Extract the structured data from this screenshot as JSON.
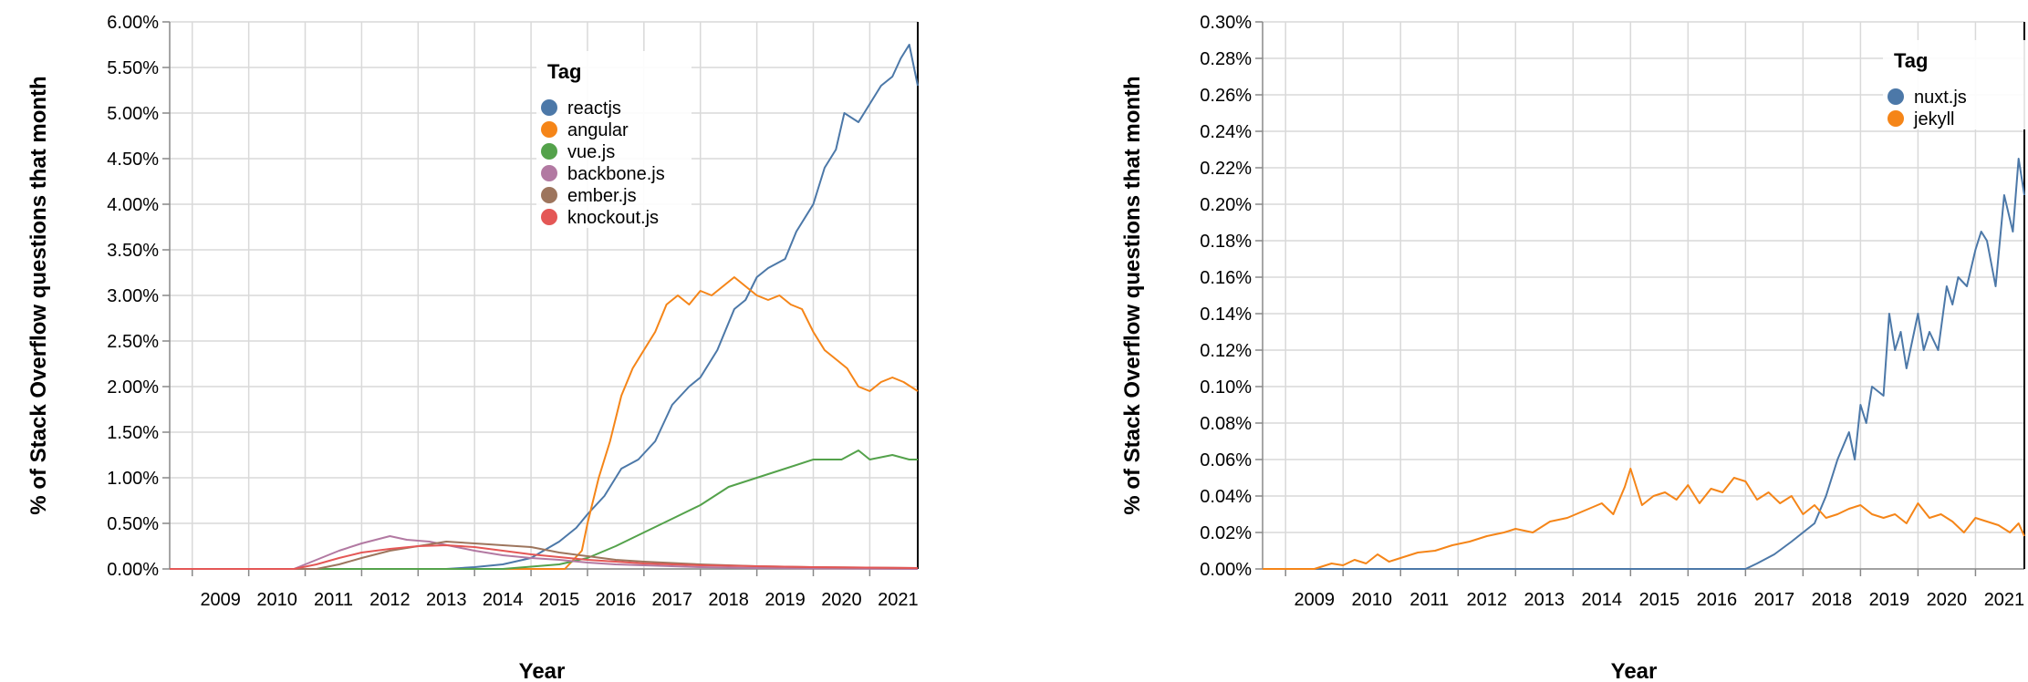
{
  "chart_data": [
    {
      "type": "line",
      "xlabel": "Year",
      "ylabel": "% of Stack Overflow questions that month",
      "x_ticks": [
        "2009",
        "2010",
        "2011",
        "2012",
        "2013",
        "2014",
        "2015",
        "2016",
        "2017",
        "2018",
        "2019",
        "2020",
        "2021"
      ],
      "y_ticks": [
        "0.00%",
        "0.50%",
        "1.00%",
        "1.50%",
        "2.00%",
        "2.50%",
        "3.00%",
        "3.50%",
        "4.00%",
        "4.50%",
        "5.00%",
        "5.50%",
        "6.00%"
      ],
      "xlim": [
        2008.6,
        2021.85
      ],
      "ylim": [
        0,
        6
      ],
      "grid": true,
      "legend": {
        "title": "Tag",
        "placement": "top-center"
      },
      "series": [
        {
          "name": "reactjs",
          "color": "#4c78a8",
          "points": [
            [
              2008.6,
              0
            ],
            [
              2013.5,
              0
            ],
            [
              2014.0,
              0.02
            ],
            [
              2014.5,
              0.05
            ],
            [
              2015.0,
              0.12
            ],
            [
              2015.5,
              0.3
            ],
            [
              2015.8,
              0.45
            ],
            [
              2016.0,
              0.6
            ],
            [
              2016.3,
              0.8
            ],
            [
              2016.6,
              1.1
            ],
            [
              2016.9,
              1.2
            ],
            [
              2017.2,
              1.4
            ],
            [
              2017.5,
              1.8
            ],
            [
              2017.8,
              2.0
            ],
            [
              2018.0,
              2.1
            ],
            [
              2018.3,
              2.4
            ],
            [
              2018.6,
              2.85
            ],
            [
              2018.8,
              2.95
            ],
            [
              2019.0,
              3.2
            ],
            [
              2019.2,
              3.3
            ],
            [
              2019.5,
              3.4
            ],
            [
              2019.7,
              3.7
            ],
            [
              2020.0,
              4.0
            ],
            [
              2020.2,
              4.4
            ],
            [
              2020.4,
              4.6
            ],
            [
              2020.55,
              5.0
            ],
            [
              2020.8,
              4.9
            ],
            [
              2021.0,
              5.1
            ],
            [
              2021.2,
              5.3
            ],
            [
              2021.4,
              5.4
            ],
            [
              2021.55,
              5.6
            ],
            [
              2021.7,
              5.75
            ],
            [
              2021.85,
              5.3
            ]
          ]
        },
        {
          "name": "angular",
          "color": "#f58518",
          "points": [
            [
              2008.6,
              0
            ],
            [
              2015.6,
              0.0
            ],
            [
              2015.9,
              0.2
            ],
            [
              2016.0,
              0.5
            ],
            [
              2016.2,
              1.0
            ],
            [
              2016.4,
              1.4
            ],
            [
              2016.6,
              1.9
            ],
            [
              2016.8,
              2.2
            ],
            [
              2017.0,
              2.4
            ],
            [
              2017.2,
              2.6
            ],
            [
              2017.4,
              2.9
            ],
            [
              2017.6,
              3.0
            ],
            [
              2017.8,
              2.9
            ],
            [
              2018.0,
              3.05
            ],
            [
              2018.2,
              3.0
            ],
            [
              2018.4,
              3.1
            ],
            [
              2018.6,
              3.2
            ],
            [
              2018.8,
              3.1
            ],
            [
              2019.0,
              3.0
            ],
            [
              2019.2,
              2.95
            ],
            [
              2019.4,
              3.0
            ],
            [
              2019.6,
              2.9
            ],
            [
              2019.8,
              2.85
            ],
            [
              2020.0,
              2.6
            ],
            [
              2020.2,
              2.4
            ],
            [
              2020.4,
              2.3
            ],
            [
              2020.6,
              2.2
            ],
            [
              2020.8,
              2.0
            ],
            [
              2021.0,
              1.95
            ],
            [
              2021.2,
              2.05
            ],
            [
              2021.4,
              2.1
            ],
            [
              2021.6,
              2.05
            ],
            [
              2021.85,
              1.95
            ]
          ]
        },
        {
          "name": "vue.js",
          "color": "#54a24b",
          "points": [
            [
              2008.6,
              0
            ],
            [
              2014.5,
              0
            ],
            [
              2015.5,
              0.05
            ],
            [
              2016.0,
              0.12
            ],
            [
              2016.5,
              0.25
            ],
            [
              2017.0,
              0.4
            ],
            [
              2017.5,
              0.55
            ],
            [
              2018.0,
              0.7
            ],
            [
              2018.5,
              0.9
            ],
            [
              2019.0,
              1.0
            ],
            [
              2019.5,
              1.1
            ],
            [
              2020.0,
              1.2
            ],
            [
              2020.5,
              1.2
            ],
            [
              2020.8,
              1.3
            ],
            [
              2021.0,
              1.2
            ],
            [
              2021.4,
              1.25
            ],
            [
              2021.7,
              1.2
            ],
            [
              2021.85,
              1.2
            ]
          ]
        },
        {
          "name": "backbone.js",
          "color": "#b279a2",
          "points": [
            [
              2008.6,
              0
            ],
            [
              2010.8,
              0
            ],
            [
              2011.2,
              0.1
            ],
            [
              2011.6,
              0.2
            ],
            [
              2012.0,
              0.28
            ],
            [
              2012.5,
              0.36
            ],
            [
              2012.8,
              0.32
            ],
            [
              2013.2,
              0.3
            ],
            [
              2013.6,
              0.25
            ],
            [
              2014.0,
              0.2
            ],
            [
              2014.5,
              0.15
            ],
            [
              2015.0,
              0.12
            ],
            [
              2015.5,
              0.1
            ],
            [
              2016.0,
              0.07
            ],
            [
              2016.5,
              0.05
            ],
            [
              2017.0,
              0.04
            ],
            [
              2018.0,
              0.02
            ],
            [
              2019.0,
              0.01
            ],
            [
              2021.85,
              0.0
            ]
          ]
        },
        {
          "name": "ember.js",
          "color": "#9d755d",
          "points": [
            [
              2008.6,
              0
            ],
            [
              2011.2,
              0
            ],
            [
              2011.6,
              0.05
            ],
            [
              2012.0,
              0.12
            ],
            [
              2012.5,
              0.2
            ],
            [
              2013.0,
              0.25
            ],
            [
              2013.5,
              0.3
            ],
            [
              2014.0,
              0.28
            ],
            [
              2014.5,
              0.26
            ],
            [
              2015.0,
              0.24
            ],
            [
              2015.5,
              0.18
            ],
            [
              2016.0,
              0.14
            ],
            [
              2016.5,
              0.1
            ],
            [
              2017.0,
              0.08
            ],
            [
              2018.0,
              0.05
            ],
            [
              2019.0,
              0.03
            ],
            [
              2020.0,
              0.02
            ],
            [
              2021.85,
              0.01
            ]
          ]
        },
        {
          "name": "knockout.js",
          "color": "#e45756",
          "points": [
            [
              2008.6,
              0
            ],
            [
              2010.8,
              0
            ],
            [
              2011.2,
              0.05
            ],
            [
              2011.6,
              0.12
            ],
            [
              2012.0,
              0.18
            ],
            [
              2012.5,
              0.22
            ],
            [
              2013.0,
              0.25
            ],
            [
              2013.5,
              0.26
            ],
            [
              2014.0,
              0.24
            ],
            [
              2014.5,
              0.2
            ],
            [
              2015.0,
              0.16
            ],
            [
              2015.5,
              0.13
            ],
            [
              2016.0,
              0.1
            ],
            [
              2016.5,
              0.08
            ],
            [
              2017.0,
              0.06
            ],
            [
              2018.0,
              0.04
            ],
            [
              2019.0,
              0.03
            ],
            [
              2020.0,
              0.02
            ],
            [
              2021.85,
              0.01
            ]
          ]
        }
      ]
    },
    {
      "type": "line",
      "xlabel": "Year",
      "ylabel": "% of Stack Overflow questions that month",
      "x_ticks": [
        "2009",
        "2010",
        "2011",
        "2012",
        "2013",
        "2014",
        "2015",
        "2016",
        "2017",
        "2018",
        "2019",
        "2020",
        "2021"
      ],
      "y_ticks": [
        "0.00%",
        "0.02%",
        "0.04%",
        "0.06%",
        "0.08%",
        "0.10%",
        "0.12%",
        "0.14%",
        "0.16%",
        "0.18%",
        "0.20%",
        "0.22%",
        "0.24%",
        "0.26%",
        "0.28%",
        "0.30%"
      ],
      "xlim": [
        2008.6,
        2021.85
      ],
      "ylim": [
        0,
        0.3
      ],
      "grid": true,
      "legend": {
        "title": "Tag",
        "placement": "top-right"
      },
      "series": [
        {
          "name": "nuxt.js",
          "color": "#4c78a8",
          "points": [
            [
              2008.6,
              0
            ],
            [
              2017.0,
              0
            ],
            [
              2017.2,
              0.003
            ],
            [
              2017.5,
              0.008
            ],
            [
              2017.8,
              0.015
            ],
            [
              2018.0,
              0.02
            ],
            [
              2018.2,
              0.025
            ],
            [
              2018.4,
              0.04
            ],
            [
              2018.6,
              0.06
            ],
            [
              2018.8,
              0.075
            ],
            [
              2018.9,
              0.06
            ],
            [
              2019.0,
              0.09
            ],
            [
              2019.1,
              0.08
            ],
            [
              2019.2,
              0.1
            ],
            [
              2019.4,
              0.095
            ],
            [
              2019.5,
              0.14
            ],
            [
              2019.6,
              0.12
            ],
            [
              2019.7,
              0.13
            ],
            [
              2019.8,
              0.11
            ],
            [
              2020.0,
              0.14
            ],
            [
              2020.1,
              0.12
            ],
            [
              2020.2,
              0.13
            ],
            [
              2020.35,
              0.12
            ],
            [
              2020.5,
              0.155
            ],
            [
              2020.6,
              0.145
            ],
            [
              2020.7,
              0.16
            ],
            [
              2020.85,
              0.155
            ],
            [
              2021.0,
              0.175
            ],
            [
              2021.1,
              0.185
            ],
            [
              2021.2,
              0.18
            ],
            [
              2021.35,
              0.155
            ],
            [
              2021.5,
              0.205
            ],
            [
              2021.65,
              0.185
            ],
            [
              2021.75,
              0.225
            ],
            [
              2021.85,
              0.205
            ]
          ]
        },
        {
          "name": "jekyll",
          "color": "#f58518",
          "points": [
            [
              2008.6,
              0
            ],
            [
              2009.5,
              0
            ],
            [
              2009.8,
              0.003
            ],
            [
              2010.0,
              0.002
            ],
            [
              2010.2,
              0.005
            ],
            [
              2010.4,
              0.003
            ],
            [
              2010.6,
              0.008
            ],
            [
              2010.8,
              0.004
            ],
            [
              2011.0,
              0.006
            ],
            [
              2011.3,
              0.009
            ],
            [
              2011.6,
              0.01
            ],
            [
              2011.9,
              0.013
            ],
            [
              2012.2,
              0.015
            ],
            [
              2012.5,
              0.018
            ],
            [
              2012.8,
              0.02
            ],
            [
              2013.0,
              0.022
            ],
            [
              2013.3,
              0.02
            ],
            [
              2013.6,
              0.026
            ],
            [
              2013.9,
              0.028
            ],
            [
              2014.2,
              0.032
            ],
            [
              2014.5,
              0.036
            ],
            [
              2014.7,
              0.03
            ],
            [
              2014.9,
              0.045
            ],
            [
              2015.0,
              0.055
            ],
            [
              2015.2,
              0.035
            ],
            [
              2015.4,
              0.04
            ],
            [
              2015.6,
              0.042
            ],
            [
              2015.8,
              0.038
            ],
            [
              2016.0,
              0.046
            ],
            [
              2016.2,
              0.036
            ],
            [
              2016.4,
              0.044
            ],
            [
              2016.6,
              0.042
            ],
            [
              2016.8,
              0.05
            ],
            [
              2017.0,
              0.048
            ],
            [
              2017.2,
              0.038
            ],
            [
              2017.4,
              0.042
            ],
            [
              2017.6,
              0.036
            ],
            [
              2017.8,
              0.04
            ],
            [
              2018.0,
              0.03
            ],
            [
              2018.2,
              0.035
            ],
            [
              2018.4,
              0.028
            ],
            [
              2018.6,
              0.03
            ],
            [
              2018.8,
              0.033
            ],
            [
              2019.0,
              0.035
            ],
            [
              2019.2,
              0.03
            ],
            [
              2019.4,
              0.028
            ],
            [
              2019.6,
              0.03
            ],
            [
              2019.8,
              0.025
            ],
            [
              2020.0,
              0.036
            ],
            [
              2020.2,
              0.028
            ],
            [
              2020.4,
              0.03
            ],
            [
              2020.6,
              0.026
            ],
            [
              2020.8,
              0.02
            ],
            [
              2021.0,
              0.028
            ],
            [
              2021.2,
              0.026
            ],
            [
              2021.4,
              0.024
            ],
            [
              2021.6,
              0.02
            ],
            [
              2021.75,
              0.025
            ],
            [
              2021.85,
              0.018
            ]
          ]
        }
      ]
    }
  ]
}
